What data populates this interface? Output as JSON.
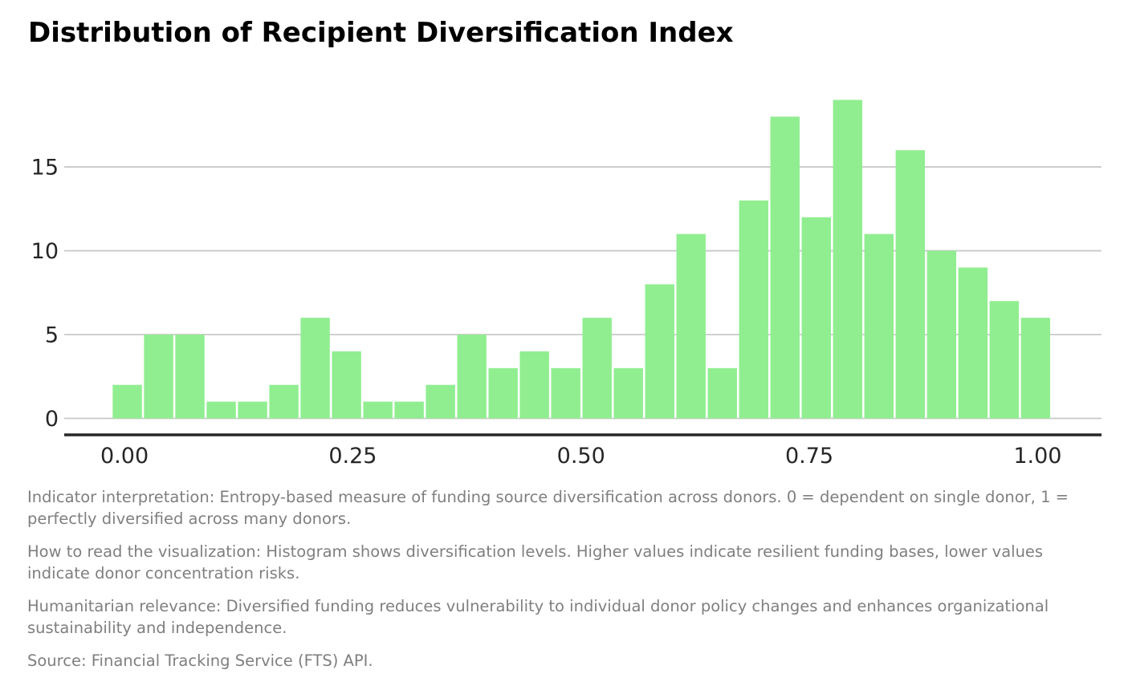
{
  "title": "Distribution of Recipient Diversification Index",
  "chart_data": {
    "type": "bar",
    "subtype": "histogram",
    "title": "Distribution of Recipient Diversification Index",
    "xlabel": "",
    "ylabel": "",
    "grid": true,
    "legend": false,
    "bar_color": "#90EE90",
    "grid_color": "#c9c9c9",
    "axis_color": "#262626",
    "tick_label_color": "#262626",
    "bin_start": -0.014,
    "bin_width": 0.0343,
    "counts": [
      2,
      5,
      5,
      1,
      1,
      2,
      6,
      4,
      1,
      1,
      2,
      5,
      3,
      4,
      3,
      6,
      3,
      8,
      11,
      3,
      13,
      18,
      12,
      19,
      11,
      16,
      10,
      9,
      7,
      6
    ],
    "xlim": [
      -0.066,
      1.07
    ],
    "ylim": [
      0,
      19.79
    ],
    "x_ticks": [
      {
        "value": 0.0,
        "label": "0.00"
      },
      {
        "value": 0.25,
        "label": "0.25"
      },
      {
        "value": 0.5,
        "label": "0.50"
      },
      {
        "value": 0.75,
        "label": "0.75"
      },
      {
        "value": 1.0,
        "label": "1.00"
      }
    ],
    "y_ticks": [
      {
        "value": 0,
        "label": "0"
      },
      {
        "value": 5,
        "label": "5"
      },
      {
        "value": 10,
        "label": "10"
      },
      {
        "value": 15,
        "label": "15"
      }
    ]
  },
  "notes": {
    "indicator": "Indicator interpretation: Entropy-based measure of funding source diversification across donors. 0 = dependent on single donor, 1 = perfectly diversified across many donors.",
    "how_to_read": "How to read the visualization: Histogram shows diversification levels. Higher values indicate resilient funding bases, lower values indicate donor concentration risks.",
    "relevance": "Humanitarian relevance: Diversified funding reduces vulnerability to individual donor policy changes and enhances organizational sustainability and independence.",
    "source": "Source: Financial Tracking Service (FTS) API."
  }
}
